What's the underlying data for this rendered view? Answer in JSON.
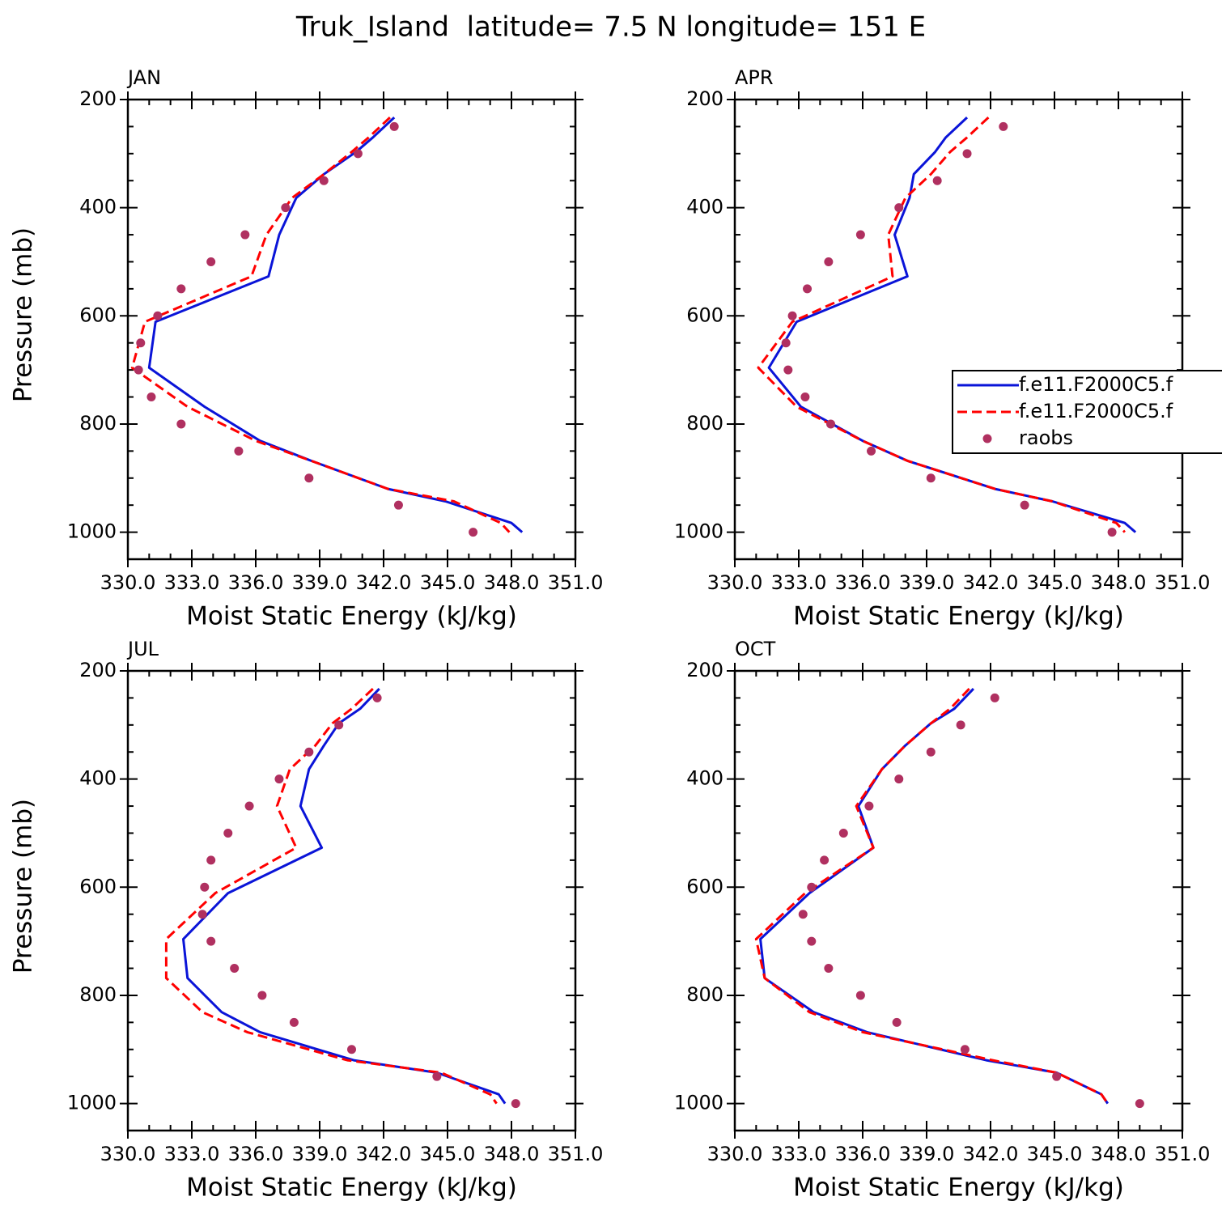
{
  "title": "Truk_Island  latitude= 7.5 N longitude= 151 E",
  "chart_data": [
    {
      "type": "line",
      "title": "JAN",
      "xlabel": "Moist Static Energy (kJ/kg)",
      "ylabel": "Pressure (mb)",
      "xlim": [
        330,
        351
      ],
      "ylim": [
        1050,
        200
      ],
      "xticks": [
        {
          "value": 330,
          "label": "330.0"
        },
        {
          "value": 333,
          "label": "333.0"
        },
        {
          "value": 336,
          "label": "336.0"
        },
        {
          "value": 339,
          "label": "339.0"
        },
        {
          "value": 342,
          "label": "342.0"
        },
        {
          "value": 345,
          "label": "345.0"
        },
        {
          "value": 348,
          "label": "348.0"
        },
        {
          "value": 351,
          "label": "351.0"
        }
      ],
      "yticks": [
        200,
        400,
        600,
        800,
        1000
      ],
      "series": [
        {
          "color": "#0a14d8",
          "linestyle": "solid",
          "pressure": [
            233,
            270,
            297,
            338,
            382,
            450,
            527,
            611,
            696,
            768,
            831,
            868,
            920,
            943,
            983,
            1000
          ],
          "values": [
            342.5,
            341.5,
            340.7,
            339.2,
            337.9,
            337.1,
            336.6,
            331.3,
            331.0,
            333.6,
            336.2,
            338.6,
            342.2,
            344.9,
            348.0,
            348.5
          ]
        },
        {
          "color": "#ff0000",
          "linestyle": "dashed",
          "pressure": [
            233,
            270,
            297,
            338,
            382,
            450,
            527,
            611,
            696,
            768,
            831,
            868,
            920,
            943,
            983,
            1000
          ],
          "values": [
            342.3,
            341.3,
            340.5,
            339.2,
            337.7,
            336.5,
            335.8,
            330.8,
            330.2,
            332.8,
            336.0,
            338.6,
            342.2,
            345.3,
            347.5,
            347.9
          ]
        },
        {
          "color": "#b03060",
          "linestyle": "markers",
          "pressure": [
            250,
            300,
            350,
            400,
            450,
            500,
            550,
            600,
            650,
            700,
            750,
            800,
            850,
            900,
            950,
            1000
          ],
          "values": [
            342.5,
            340.8,
            339.2,
            337.4,
            335.5,
            333.9,
            332.5,
            331.4,
            330.6,
            330.5,
            331.1,
            332.5,
            335.2,
            338.5,
            342.7,
            346.2
          ]
        }
      ]
    },
    {
      "type": "line",
      "title": "APR",
      "xlabel": "Moist Static Energy (kJ/kg)",
      "xlim": [
        330,
        351
      ],
      "ylim": [
        1050,
        200
      ],
      "xticks": [
        {
          "value": 330,
          "label": "330.0"
        },
        {
          "value": 333,
          "label": "333.0"
        },
        {
          "value": 336,
          "label": "336.0"
        },
        {
          "value": 339,
          "label": "339.0"
        },
        {
          "value": 342,
          "label": "342.0"
        },
        {
          "value": 345,
          "label": "345.0"
        },
        {
          "value": 348,
          "label": "348.0"
        },
        {
          "value": 351,
          "label": "351.0"
        }
      ],
      "yticks": [
        200,
        400,
        600,
        800,
        1000
      ],
      "legend": "right",
      "series": [
        {
          "name": "f.e11.F2000C5.f",
          "color": "#0a14d8",
          "linestyle": "solid",
          "pressure": [
            233,
            270,
            297,
            338,
            382,
            450,
            527,
            611,
            696,
            768,
            831,
            868,
            920,
            943,
            983,
            1000
          ],
          "values": [
            340.9,
            339.9,
            339.4,
            338.4,
            338.2,
            337.5,
            338.1,
            332.9,
            331.6,
            333.1,
            336.0,
            338.1,
            342.2,
            344.9,
            348.3,
            348.8
          ]
        },
        {
          "name": "f.e11.F2000C5.f",
          "color": "#ff0000",
          "linestyle": "dashed",
          "pressure": [
            233,
            270,
            297,
            338,
            382,
            450,
            527,
            611,
            696,
            768,
            831,
            868,
            920,
            943,
            983,
            1000
          ],
          "values": [
            341.9,
            340.9,
            340.1,
            339.2,
            338.0,
            337.2,
            337.4,
            332.7,
            331.1,
            332.9,
            336.0,
            338.1,
            342.2,
            344.9,
            347.9,
            348.3
          ]
        },
        {
          "name": "raobs",
          "color": "#b03060",
          "linestyle": "markers",
          "pressure": [
            250,
            300,
            350,
            400,
            450,
            500,
            550,
            600,
            650,
            700,
            750,
            800,
            850,
            900,
            950,
            1000
          ],
          "values": [
            342.6,
            340.9,
            339.5,
            337.7,
            335.9,
            334.4,
            333.4,
            332.7,
            332.4,
            332.5,
            333.3,
            334.5,
            336.4,
            339.2,
            343.6,
            347.7
          ]
        }
      ]
    },
    {
      "type": "line",
      "title": "JUL",
      "xlabel": "Moist Static Energy (kJ/kg)",
      "ylabel": "Pressure (mb)",
      "xlim": [
        330,
        351
      ],
      "ylim": [
        1050,
        200
      ],
      "xticks": [
        {
          "value": 330,
          "label": "330.0"
        },
        {
          "value": 333,
          "label": "333.0"
        },
        {
          "value": 336,
          "label": "336.0"
        },
        {
          "value": 339,
          "label": "339.0"
        },
        {
          "value": 342,
          "label": "342.0"
        },
        {
          "value": 345,
          "label": "345.0"
        },
        {
          "value": 348,
          "label": "348.0"
        },
        {
          "value": 351,
          "label": "351.0"
        }
      ],
      "yticks": [
        200,
        400,
        600,
        800,
        1000
      ],
      "series": [
        {
          "color": "#0a14d8",
          "linestyle": "solid",
          "pressure": [
            233,
            270,
            297,
            338,
            382,
            450,
            527,
            611,
            696,
            768,
            831,
            868,
            920,
            943,
            983,
            1000
          ],
          "values": [
            341.8,
            340.9,
            339.9,
            339.2,
            338.5,
            338.1,
            339.1,
            334.7,
            332.6,
            332.8,
            334.4,
            336.2,
            340.6,
            344.5,
            347.4,
            347.7
          ]
        },
        {
          "color": "#ff0000",
          "linestyle": "dashed",
          "pressure": [
            233,
            270,
            297,
            338,
            382,
            450,
            527,
            611,
            696,
            768,
            831,
            868,
            920,
            943,
            983,
            1000
          ],
          "values": [
            341.5,
            340.5,
            339.6,
            338.8,
            337.6,
            337.0,
            337.9,
            334.1,
            331.8,
            331.8,
            333.5,
            335.6,
            340.3,
            344.7,
            347.0,
            347.3
          ]
        },
        {
          "color": "#b03060",
          "linestyle": "markers",
          "pressure": [
            250,
            300,
            350,
            400,
            450,
            500,
            550,
            600,
            650,
            700,
            750,
            800,
            850,
            900,
            950,
            1000
          ],
          "values": [
            341.7,
            339.9,
            338.5,
            337.1,
            335.7,
            334.7,
            333.9,
            333.6,
            333.5,
            333.9,
            335.0,
            336.3,
            337.8,
            340.5,
            344.5,
            348.2
          ]
        }
      ]
    },
    {
      "type": "line",
      "title": "OCT",
      "xlabel": "Moist Static Energy (kJ/kg)",
      "xlim": [
        330,
        351
      ],
      "ylim": [
        1050,
        200
      ],
      "xticks": [
        {
          "value": 330,
          "label": "330.0"
        },
        {
          "value": 333,
          "label": "333.0"
        },
        {
          "value": 336,
          "label": "336.0"
        },
        {
          "value": 339,
          "label": "339.0"
        },
        {
          "value": 342,
          "label": "342.0"
        },
        {
          "value": 345,
          "label": "345.0"
        },
        {
          "value": 348,
          "label": "348.0"
        },
        {
          "value": 351,
          "label": "351.0"
        }
      ],
      "yticks": [
        200,
        400,
        600,
        800,
        1000
      ],
      "series": [
        {
          "color": "#0a14d8",
          "linestyle": "solid",
          "pressure": [
            233,
            270,
            297,
            338,
            382,
            450,
            527,
            611,
            696,
            768,
            831,
            868,
            920,
            943,
            983,
            1000
          ],
          "values": [
            341.2,
            340.3,
            339.2,
            338.0,
            336.9,
            335.8,
            336.5,
            333.5,
            331.2,
            331.4,
            333.7,
            336.2,
            341.8,
            345.1,
            347.2,
            347.5
          ]
        },
        {
          "color": "#ff0000",
          "linestyle": "dashed",
          "pressure": [
            233,
            270,
            297,
            338,
            382,
            450,
            527,
            611,
            696,
            768,
            831,
            868,
            920,
            943,
            983,
            1000
          ],
          "values": [
            341.0,
            340.1,
            339.2,
            338.0,
            336.9,
            335.7,
            336.5,
            333.3,
            331.0,
            331.4,
            333.5,
            336.0,
            342.1,
            345.1,
            347.2,
            347.5
          ]
        },
        {
          "color": "#b03060",
          "linestyle": "markers",
          "pressure": [
            250,
            300,
            350,
            400,
            450,
            500,
            550,
            600,
            650,
            700,
            750,
            800,
            850,
            900,
            950,
            1000
          ],
          "values": [
            342.2,
            340.6,
            339.2,
            337.7,
            336.3,
            335.1,
            334.2,
            333.6,
            333.2,
            333.6,
            334.4,
            335.9,
            337.6,
            340.8,
            345.1,
            349.0
          ]
        }
      ]
    }
  ]
}
